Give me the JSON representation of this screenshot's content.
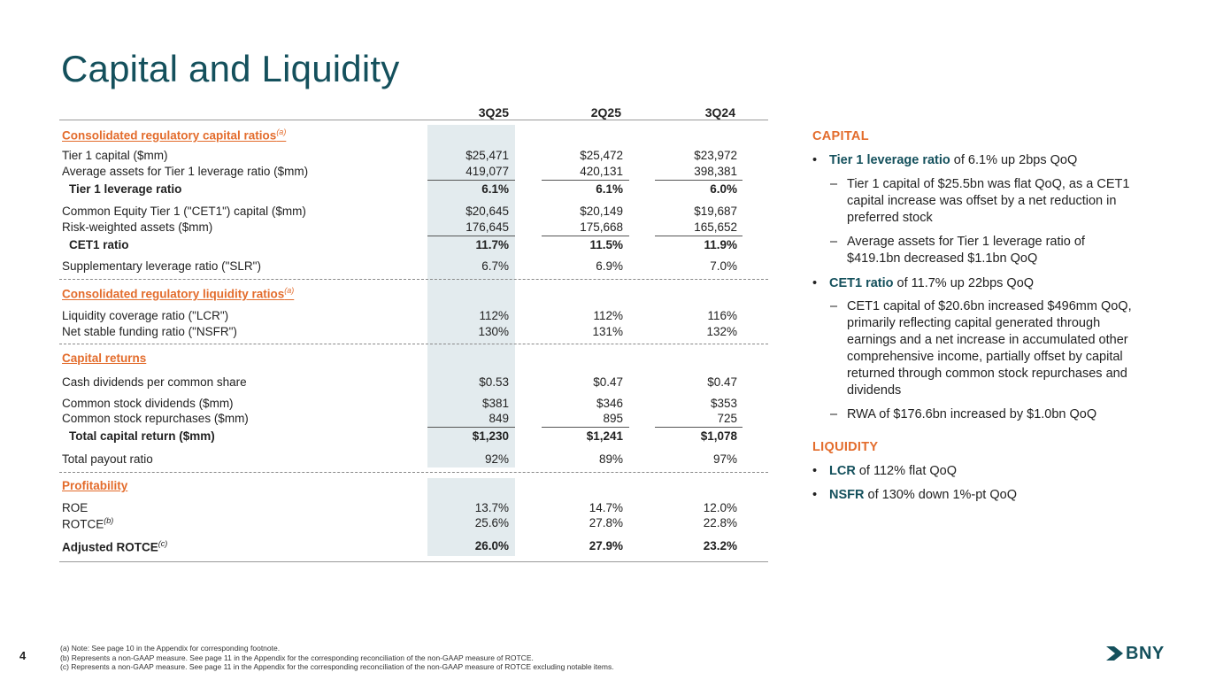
{
  "title": "Capital and Liquidity",
  "columns": [
    "3Q25",
    "2Q25",
    "3Q24"
  ],
  "sections": {
    "capital_ratios": "Consolidated regulatory capital ratios",
    "liquidity_ratios": "Consolidated regulatory liquidity ratios",
    "capital_returns": "Capital returns",
    "profitability": "Profitability",
    "note_a": "(a)",
    "note_b": "(b)",
    "note_c": "(c)"
  },
  "rows": {
    "tier1_capital": {
      "label": "Tier 1 capital ($mm)",
      "v": [
        "$25,471",
        "$25,472",
        "$23,972"
      ]
    },
    "avg_assets": {
      "label": "Average assets for Tier 1 leverage ratio ($mm)",
      "v": [
        "419,077",
        "420,131",
        "398,381"
      ]
    },
    "tier1_lev": {
      "label": "Tier 1 leverage ratio",
      "v": [
        "6.1%",
        "6.1%",
        "6.0%"
      ]
    },
    "cet1_capital": {
      "label": "Common Equity Tier 1 (\"CET1\") capital ($mm)",
      "v": [
        "$20,645",
        "$20,149",
        "$19,687"
      ]
    },
    "rwa": {
      "label": "Risk-weighted assets ($mm)",
      "v": [
        "176,645",
        "175,668",
        "165,652"
      ]
    },
    "cet1_ratio": {
      "label": "CET1 ratio",
      "v": [
        "11.7%",
        "11.5%",
        "11.9%"
      ]
    },
    "slr": {
      "label": "Supplementary leverage ratio (\"SLR\")",
      "v": [
        "6.7%",
        "6.9%",
        "7.0%"
      ]
    },
    "lcr": {
      "label": "Liquidity coverage ratio (\"LCR\")",
      "v": [
        "112%",
        "112%",
        "116%"
      ]
    },
    "nsfr": {
      "label": "Net stable funding ratio (\"NSFR\")",
      "v": [
        "130%",
        "131%",
        "132%"
      ]
    },
    "cash_div": {
      "label": "Cash dividends per common share",
      "v": [
        "$0.53",
        "$0.47",
        "$0.47"
      ]
    },
    "stock_div": {
      "label": "Common stock dividends ($mm)",
      "v": [
        "$381",
        "$346",
        "$353"
      ]
    },
    "repurchases": {
      "label": "Common stock repurchases ($mm)",
      "v": [
        "849",
        "895",
        "725"
      ]
    },
    "total_return": {
      "label": "Total capital return ($mm)",
      "v": [
        "$1,230",
        "$1,241",
        "$1,078"
      ]
    },
    "payout": {
      "label": "Total payout ratio",
      "v": [
        "92%",
        "89%",
        "97%"
      ]
    },
    "roe": {
      "label": "ROE",
      "v": [
        "13.7%",
        "14.7%",
        "12.0%"
      ]
    },
    "rotce": {
      "label": "ROTCE",
      "v": [
        "25.6%",
        "27.8%",
        "22.8%"
      ]
    },
    "adj_rotce": {
      "label": "Adjusted ROTCE",
      "v": [
        "26.0%",
        "27.9%",
        "23.2%"
      ]
    }
  },
  "commentary": {
    "capital_heading": "CAPITAL",
    "b1_bold": "Tier 1 leverage ratio",
    "b1_rest": " of 6.1% up 2bps QoQ",
    "b1_s1": "Tier 1 capital of $25.5bn was flat QoQ, as a CET1 capital increase was offset by a net reduction in preferred stock",
    "b1_s2": "Average assets for Tier 1 leverage ratio of $419.1bn decreased $1.1bn QoQ",
    "b2_bold": "CET1 ratio",
    "b2_rest": " of 11.7% up 22bps QoQ",
    "b2_s1": "CET1 capital of $20.6bn increased $496mm QoQ, primarily reflecting capital generated through earnings and a net increase in accumulated other comprehensive income, partially offset by capital returned through common stock repurchases and dividends",
    "b2_s2": "RWA of $176.6bn increased by $1.0bn QoQ",
    "liquidity_heading": "LIQUIDITY",
    "b3_bold": "LCR",
    "b3_rest": " of 112% flat QoQ",
    "b4_bold": "NSFR",
    "b4_rest": " of 130% down 1%-pt QoQ",
    "bullet": "•",
    "dash": "–"
  },
  "footnotes": [
    "(a) Note: See page 10 in the Appendix for corresponding footnote.",
    "(b) Represents a non-GAAP measure. See page 11 in the Appendix for the corresponding reconciliation of the non-GAAP measure of ROTCE.",
    "(c)  Represents a non-GAAP measure. See page 11 in the Appendix for the corresponding reconciliation of the non-GAAP measure of ROTCE excluding notable items."
  ],
  "page_number": "4",
  "logo_text": "BNY",
  "colors": {
    "title": "#14505c",
    "accent": "#e36c2c",
    "shade": "#e3ebee"
  }
}
